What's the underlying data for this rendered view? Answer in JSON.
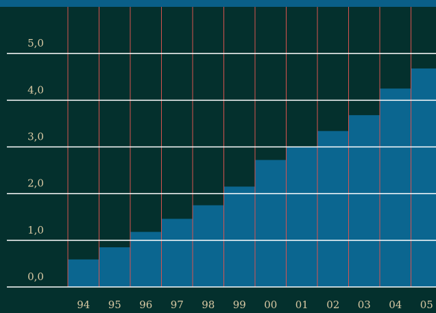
{
  "chart_data": {
    "type": "bar",
    "categories": [
      "94",
      "95",
      "96",
      "97",
      "98",
      "99",
      "00",
      "01",
      "02",
      "03",
      "04",
      "05"
    ],
    "values": [
      0.59,
      0.85,
      1.18,
      1.46,
      1.75,
      2.15,
      2.72,
      3.01,
      3.34,
      3.68,
      4.25,
      4.68
    ],
    "color": "#0b6690",
    "ylim": [
      0,
      6
    ],
    "yticks": [
      {
        "value": 0,
        "label": "0,0"
      },
      {
        "value": 1,
        "label": "1,0"
      },
      {
        "value": 2,
        "label": "2,0"
      },
      {
        "value": 3,
        "label": "3,0"
      },
      {
        "value": 4,
        "label": "4,0"
      },
      {
        "value": 5,
        "label": "5,0"
      }
    ],
    "grid": true
  }
}
